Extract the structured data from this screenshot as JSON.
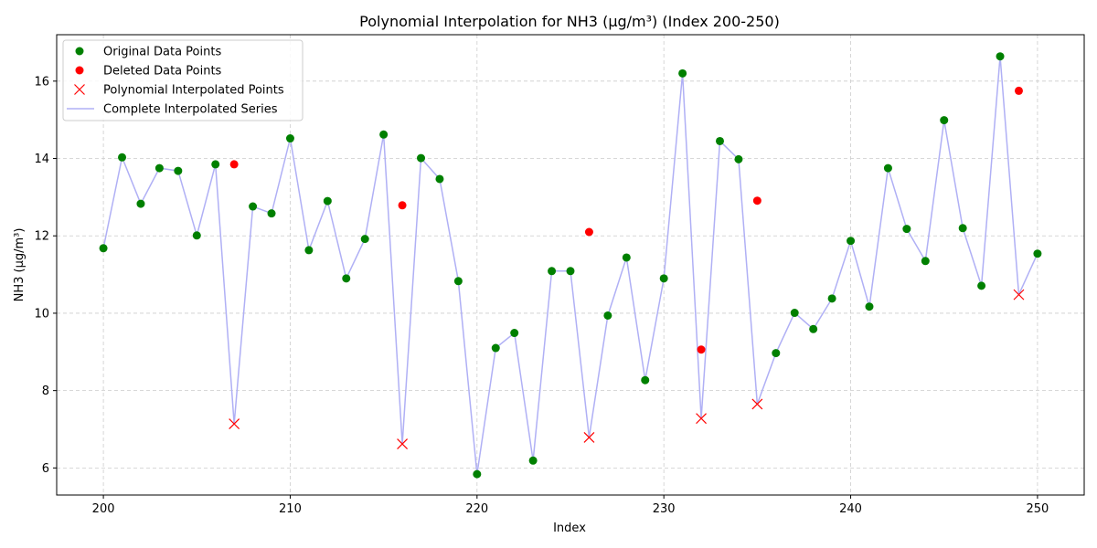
{
  "chart_data": {
    "type": "line",
    "title": "Polynomial Interpolation for NH3 (µg/m³) (Index 200-250)",
    "xlabel": "Index",
    "ylabel": "NH3 (µg/m³)",
    "xlim": [
      197.5,
      252.5
    ],
    "ylim": [
      5.3,
      17.2
    ],
    "xticks": [
      200,
      210,
      220,
      230,
      240,
      250
    ],
    "yticks": [
      6,
      8,
      10,
      12,
      14,
      16
    ],
    "grid": true,
    "legend_position": "top-left",
    "colors": {
      "original": "#008000",
      "deleted": "#ff0000",
      "interpolated": "#ff0000",
      "series_line": "#b0b0f5"
    },
    "series": [
      {
        "name": "Original Data Points",
        "style": "dot",
        "points": [
          [
            200,
            11.68
          ],
          [
            201,
            14.03
          ],
          [
            202,
            12.83
          ],
          [
            203,
            13.75
          ],
          [
            204,
            13.68
          ],
          [
            205,
            12.01
          ],
          [
            206,
            13.85
          ],
          [
            208,
            12.76
          ],
          [
            209,
            12.58
          ],
          [
            210,
            14.52
          ],
          [
            211,
            11.63
          ],
          [
            212,
            12.9
          ],
          [
            213,
            10.9
          ],
          [
            214,
            11.92
          ],
          [
            215,
            14.62
          ],
          [
            217,
            14.01
          ],
          [
            218,
            13.47
          ],
          [
            219,
            10.83
          ],
          [
            220,
            5.84
          ],
          [
            221,
            9.1
          ],
          [
            222,
            9.49
          ],
          [
            223,
            6.19
          ],
          [
            224,
            11.09
          ],
          [
            225,
            11.09
          ],
          [
            227,
            9.94
          ],
          [
            228,
            11.44
          ],
          [
            229,
            8.27
          ],
          [
            230,
            10.9
          ],
          [
            231,
            16.2
          ],
          [
            233,
            14.45
          ],
          [
            234,
            13.98
          ],
          [
            236,
            8.97
          ],
          [
            237,
            10.01
          ],
          [
            238,
            9.59
          ],
          [
            239,
            10.38
          ],
          [
            240,
            11.87
          ],
          [
            241,
            10.17
          ],
          [
            242,
            13.75
          ],
          [
            243,
            12.18
          ],
          [
            244,
            11.35
          ],
          [
            245,
            14.99
          ],
          [
            246,
            12.2
          ],
          [
            247,
            10.71
          ],
          [
            248,
            16.64
          ],
          [
            250,
            11.54
          ]
        ]
      },
      {
        "name": "Deleted Data Points",
        "style": "dot",
        "points": [
          [
            207,
            13.85
          ],
          [
            216,
            12.79
          ],
          [
            226,
            12.1
          ],
          [
            232,
            9.06
          ],
          [
            235,
            12.91
          ],
          [
            249,
            15.75
          ]
        ]
      },
      {
        "name": "Polynomial Interpolated Points",
        "style": "x",
        "points": [
          [
            207,
            7.14
          ],
          [
            216,
            6.62
          ],
          [
            226,
            6.79
          ],
          [
            232,
            7.28
          ],
          [
            235,
            7.65
          ],
          [
            249,
            10.48
          ]
        ]
      },
      {
        "name": "Complete Interpolated Series",
        "style": "line",
        "points": [
          [
            200,
            11.68
          ],
          [
            201,
            14.03
          ],
          [
            202,
            12.83
          ],
          [
            203,
            13.75
          ],
          [
            204,
            13.68
          ],
          [
            205,
            12.01
          ],
          [
            206,
            13.85
          ],
          [
            207,
            7.14
          ],
          [
            208,
            12.76
          ],
          [
            209,
            12.58
          ],
          [
            210,
            14.52
          ],
          [
            211,
            11.63
          ],
          [
            212,
            12.9
          ],
          [
            213,
            10.9
          ],
          [
            214,
            11.92
          ],
          [
            215,
            14.62
          ],
          [
            216,
            6.62
          ],
          [
            217,
            14.01
          ],
          [
            218,
            13.47
          ],
          [
            219,
            10.83
          ],
          [
            220,
            5.84
          ],
          [
            221,
            9.1
          ],
          [
            222,
            9.49
          ],
          [
            223,
            6.19
          ],
          [
            224,
            11.09
          ],
          [
            225,
            11.09
          ],
          [
            226,
            6.79
          ],
          [
            227,
            9.94
          ],
          [
            228,
            11.44
          ],
          [
            229,
            8.27
          ],
          [
            230,
            10.9
          ],
          [
            231,
            16.2
          ],
          [
            232,
            7.28
          ],
          [
            233,
            14.45
          ],
          [
            234,
            13.98
          ],
          [
            235,
            7.65
          ],
          [
            236,
            8.97
          ],
          [
            237,
            10.01
          ],
          [
            238,
            9.59
          ],
          [
            239,
            10.38
          ],
          [
            240,
            11.87
          ],
          [
            241,
            10.17
          ],
          [
            242,
            13.75
          ],
          [
            243,
            12.18
          ],
          [
            244,
            11.35
          ],
          [
            245,
            14.99
          ],
          [
            246,
            12.2
          ],
          [
            247,
            10.71
          ],
          [
            248,
            16.64
          ],
          [
            249,
            10.48
          ],
          [
            250,
            11.54
          ]
        ]
      }
    ]
  }
}
